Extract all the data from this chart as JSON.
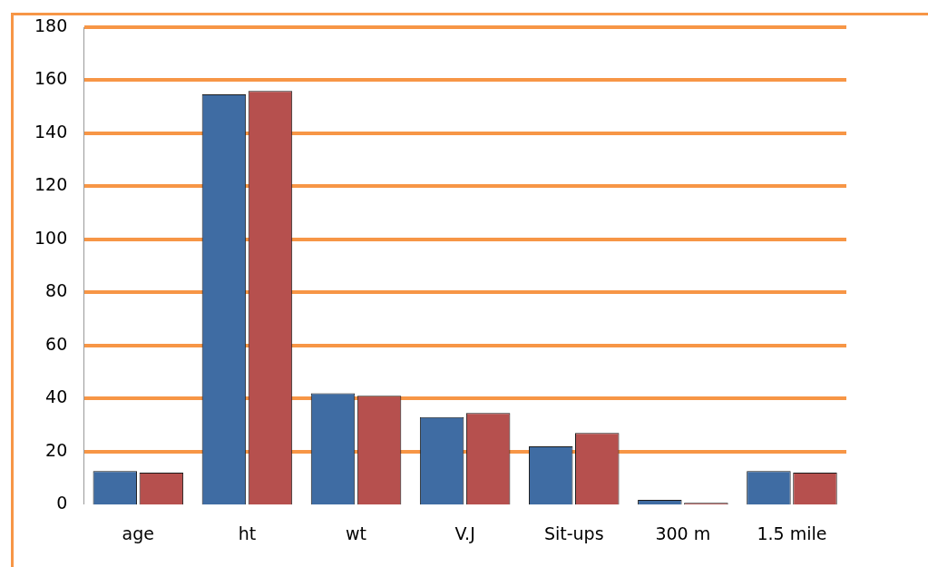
{
  "chart_data": {
    "type": "bar",
    "categories": [
      "age",
      "ht",
      "wt",
      "V.J",
      "Sit-ups",
      "300 m",
      "1.5 mile"
    ],
    "series": [
      {
        "color": "#3f6ca3",
        "values": [
          12.6,
          154.7,
          42,
          33,
          22,
          1.8,
          12.6
        ]
      },
      {
        "color": "#b6504e",
        "values": [
          12,
          156,
          41,
          34.5,
          27,
          0.7,
          12
        ]
      }
    ],
    "ylim": [
      0,
      180
    ],
    "yticks": [
      0,
      20,
      40,
      60,
      80,
      100,
      120,
      140,
      160,
      180
    ],
    "grid": "y",
    "legend": false
  }
}
